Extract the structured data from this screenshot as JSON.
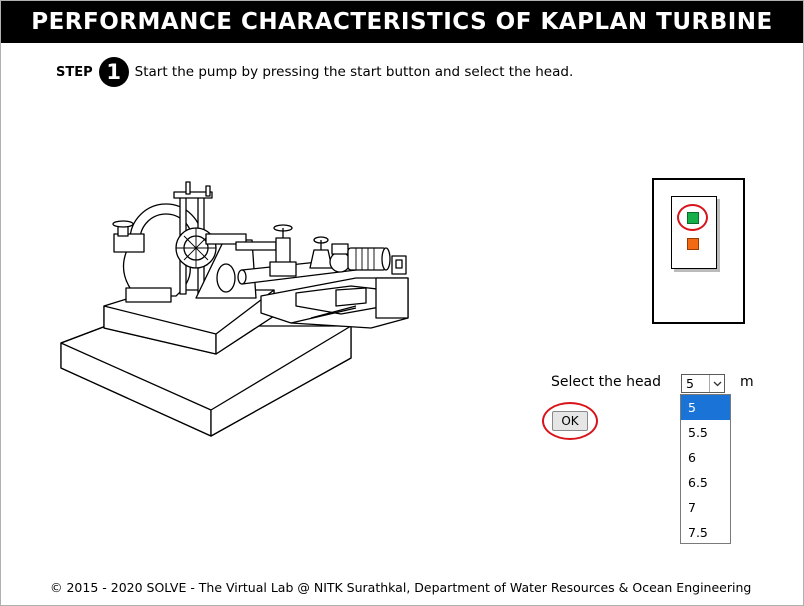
{
  "header": {
    "title": "PERFORMANCE CHARACTERISTICS OF KAPLAN TURBINE"
  },
  "step": {
    "word": "STEP",
    "number": "1",
    "instruction": "Start the pump by pressing the start button and select the head."
  },
  "control_panel": {
    "start_button_color": "#16b04a",
    "stop_button_color": "#f26b12",
    "highlight_color": "#d8141b"
  },
  "head_selector": {
    "label": "Select the head",
    "selected_value": "5",
    "unit": "m",
    "options": [
      "5",
      "5.5",
      "6",
      "6.5",
      "7",
      "7.5"
    ],
    "selected_index": 0
  },
  "ok_button": {
    "label": "OK"
  },
  "footer": {
    "text": "© 2015 - 2020 SOLVE - The Virtual Lab @ NITK Surathkal, Department of Water Resources & Ocean Engineering"
  }
}
